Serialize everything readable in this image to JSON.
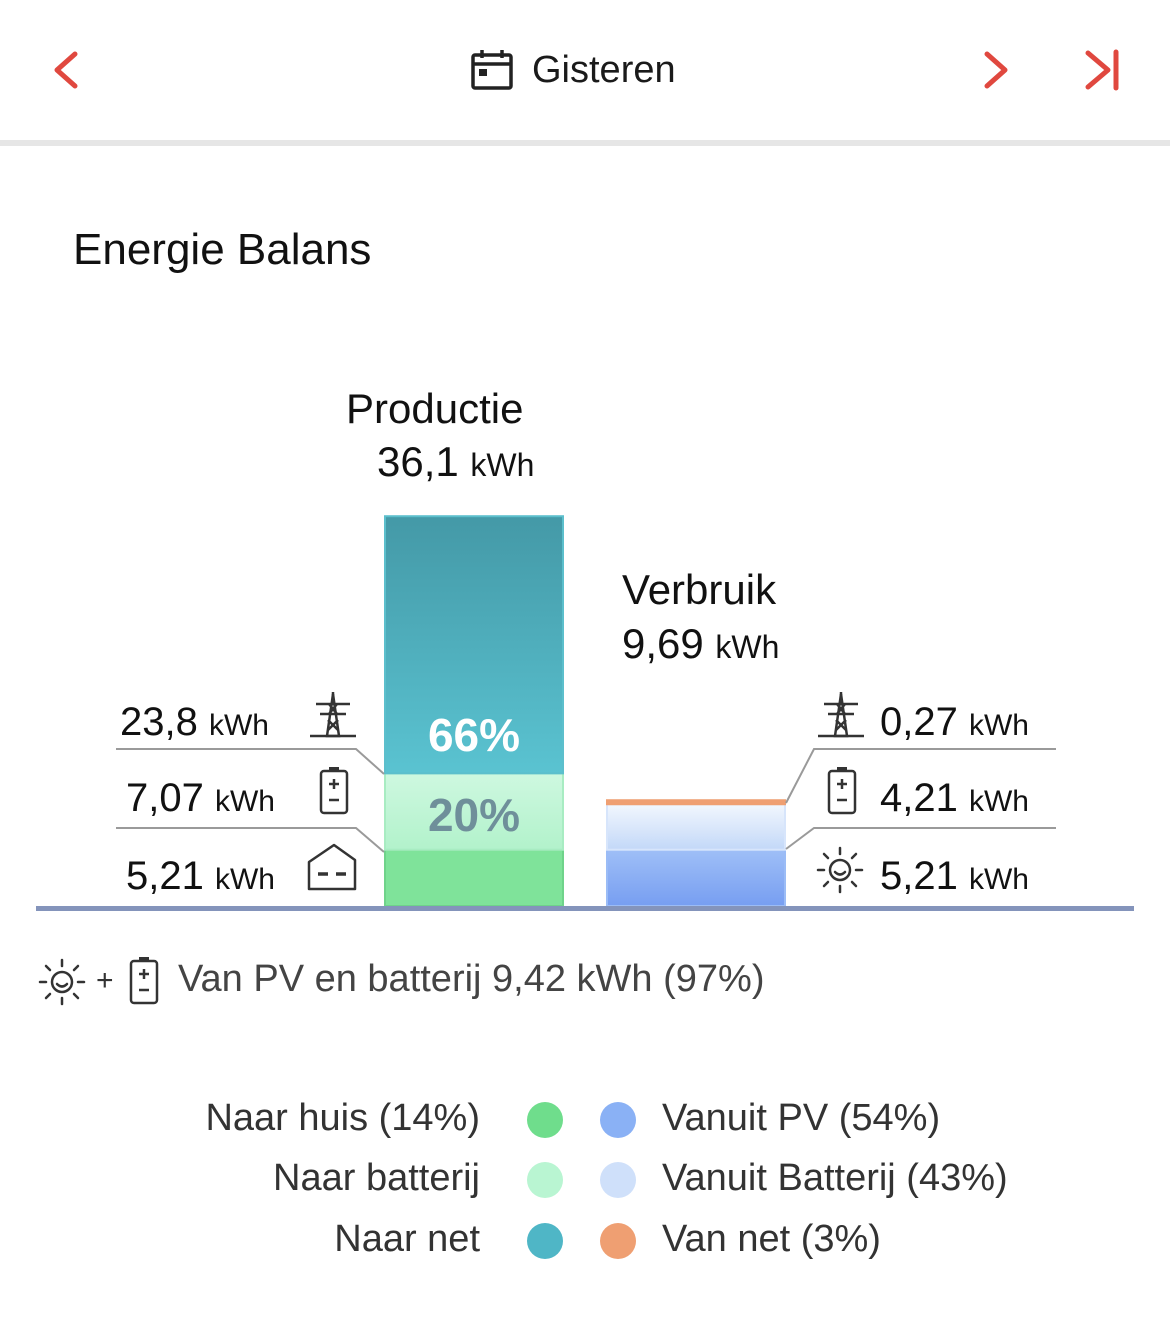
{
  "header": {
    "title": "Gisteren"
  },
  "section_title": "Energie Balans",
  "production": {
    "label": "Productie",
    "value": "36,1",
    "unit": "kWh"
  },
  "consumption": {
    "label": "Verbruik",
    "value": "9,69",
    "unit": "kWh"
  },
  "left_rows": [
    {
      "value": "23,8",
      "unit": "kWh",
      "icon": "power-tower-icon"
    },
    {
      "value": "7,07",
      "unit": "kWh",
      "icon": "battery-icon"
    },
    {
      "value": "5,21",
      "unit": "kWh",
      "icon": "house-icon"
    }
  ],
  "right_rows": [
    {
      "value": "0,27",
      "unit": "kWh",
      "icon": "power-tower-icon"
    },
    {
      "value": "4,21",
      "unit": "kWh",
      "icon": "battery-icon"
    },
    {
      "value": "5,21",
      "unit": "kWh",
      "icon": "sun-icon"
    }
  ],
  "percent_labels": {
    "naar_net": "66%",
    "naar_batterij": "20%"
  },
  "summary": {
    "plus": "+",
    "text": "Van PV en batterij 9,42 kWh (97%)"
  },
  "legend": {
    "left": [
      "Naar huis (14%)",
      "Naar batterij",
      "Naar net"
    ],
    "right": [
      "Vanuit PV (54%)",
      "Vanuit Batterij (43%)",
      "Van net (3%)"
    ]
  },
  "colors": {
    "accent": "#e0483f",
    "naar_huis": "#6fdd8c",
    "naar_batterij": "#b9f5d2",
    "naar_net": "#4fb6c6",
    "vanuit_pv": "#8ab1f5",
    "vanuit_batterij": "#cfe0fa",
    "van_net": "#ef9f72",
    "baseline": "#8494bb"
  },
  "chart_data": {
    "type": "bar",
    "stacked": true,
    "categories": [
      "Productie",
      "Verbruik"
    ],
    "series": [
      {
        "name": "Naar huis",
        "values": [
          5.21,
          0
        ]
      },
      {
        "name": "Naar batterij",
        "values": [
          7.07,
          0
        ]
      },
      {
        "name": "Naar net",
        "values": [
          23.8,
          0
        ]
      },
      {
        "name": "Vanuit PV",
        "values": [
          0,
          5.21
        ]
      },
      {
        "name": "Vanuit Batterij",
        "values": [
          0,
          4.21
        ]
      },
      {
        "name": "Van net",
        "values": [
          0,
          0.27
        ]
      }
    ],
    "totals": [
      36.1,
      9.69
    ],
    "unit": "kWh",
    "ylim": [
      0,
      36.1
    ]
  }
}
